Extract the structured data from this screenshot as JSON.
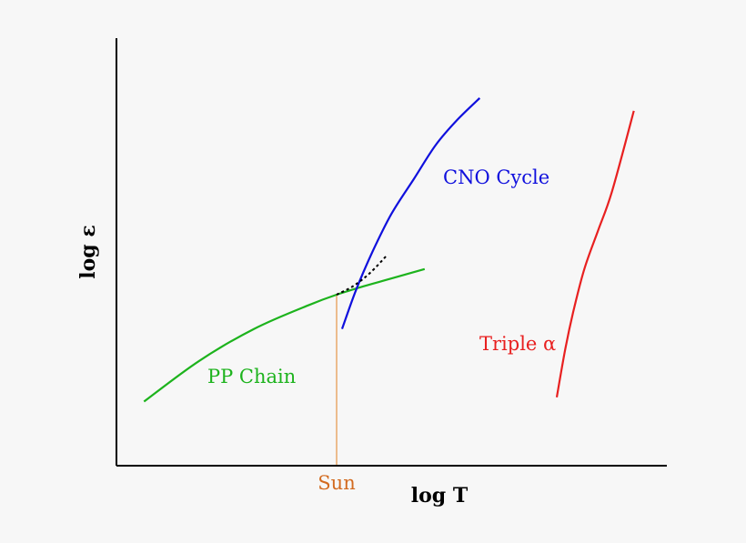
{
  "chart_data": {
    "type": "line",
    "title": "",
    "xlabel": "log T",
    "ylabel": "log ε",
    "xlim": [
      0,
      1
    ],
    "ylim": [
      0,
      1
    ],
    "grid": false,
    "legend": "none",
    "ticks": {
      "x": [],
      "y": []
    },
    "series": [
      {
        "name": "PP Chain",
        "color": "#1db31d",
        "x": [
          0.05,
          0.15,
          0.25,
          0.35,
          0.4,
          0.45,
          0.5,
          0.56
        ],
        "y": [
          0.15,
          0.245,
          0.32,
          0.376,
          0.4,
          0.42,
          0.438,
          0.46
        ]
      },
      {
        "name": "CNO Cycle",
        "color": "#1010dd",
        "x": [
          0.41,
          0.435,
          0.465,
          0.5,
          0.54,
          0.58,
          0.62,
          0.66
        ],
        "y": [
          0.32,
          0.41,
          0.5,
          0.59,
          0.67,
          0.75,
          0.81,
          0.86
        ]
      },
      {
        "name": "Triple α",
        "color": "#e82020",
        "x": [
          0.8,
          0.815,
          0.83,
          0.85,
          0.875,
          0.9,
          0.94
        ],
        "y": [
          0.16,
          0.27,
          0.36,
          0.46,
          0.55,
          0.64,
          0.83
        ]
      }
    ],
    "combined": {
      "color": "#000000",
      "x": [
        0.4,
        0.43,
        0.46,
        0.49
      ],
      "y": [
        0.4,
        0.42,
        0.45,
        0.49
      ]
    },
    "sun": {
      "label": "Sun",
      "x": 0.4,
      "color": "#d36b20",
      "line_color": "#e9a86a"
    }
  }
}
